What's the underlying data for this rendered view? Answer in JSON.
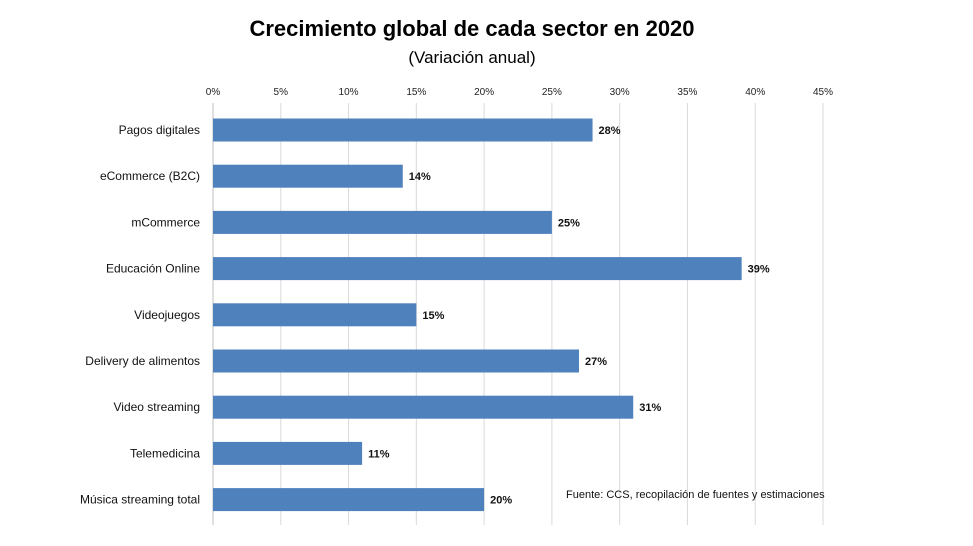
{
  "chart_data": {
    "type": "bar",
    "orientation": "horizontal",
    "title": "Crecimiento global de cada sector en 2020",
    "subtitle": "(Variación anual)",
    "categories": [
      "Pagos digitales",
      "eCommerce (B2C)",
      "mCommerce",
      "Educación Online",
      "Videojuegos",
      "Delivery de alimentos",
      "Video streaming",
      "Telemedicina",
      "Música streaming total"
    ],
    "values": [
      28,
      14,
      25,
      39,
      15,
      27,
      31,
      11,
      20
    ],
    "data_labels": [
      "28%",
      "14%",
      "25%",
      "39%",
      "15%",
      "27%",
      "31%",
      "11%",
      "20%"
    ],
    "xlim": [
      0,
      45
    ],
    "xticks": [
      0,
      5,
      10,
      15,
      20,
      25,
      30,
      35,
      40,
      45
    ],
    "xtick_labels": [
      "0%",
      "5%",
      "10%",
      "15%",
      "20%",
      "25%",
      "30%",
      "35%",
      "40%",
      "45%"
    ],
    "xaxis_position": "top",
    "grid": "vertical",
    "bar_color": "#4f81bd",
    "source": "Fuente: CCS, recopilación de fuentes y estimaciones"
  }
}
